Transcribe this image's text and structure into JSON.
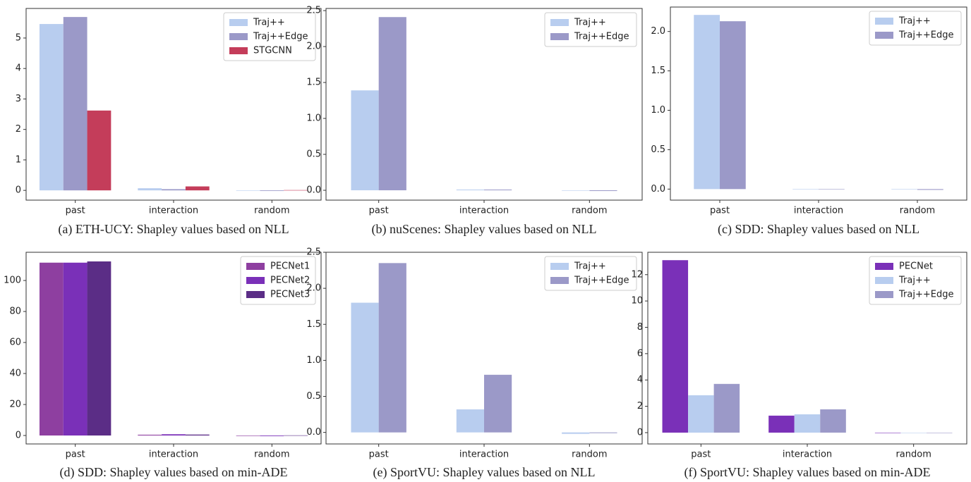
{
  "chart_data": [
    {
      "type": "bar",
      "caption": "(a) ETH-UCY: Shapley values based on NLL",
      "categories": [
        "past",
        "interaction",
        "random"
      ],
      "series": [
        {
          "name": "Traj++",
          "color": "#b8cdef",
          "values": [
            5.46,
            0.07,
            0.0
          ]
        },
        {
          "name": "Traj++Edge",
          "color": "#9b99c8",
          "values": [
            5.69,
            0.04,
            -0.02
          ]
        },
        {
          "name": "STGCNN",
          "color": "#c43d5a",
          "values": [
            2.62,
            0.13,
            0.01
          ]
        }
      ],
      "ylim": [
        -0.32,
        5.97
      ],
      "yticks": [
        0,
        1,
        2,
        3,
        4,
        5
      ],
      "legend": "upper right"
    },
    {
      "type": "bar",
      "caption": "(b) nuScenes: Shapley values based on NLL",
      "categories": [
        "past",
        "interaction",
        "random"
      ],
      "series": [
        {
          "name": "Traj++",
          "color": "#b8cdef",
          "values": [
            1.39,
            0.01,
            0.0
          ]
        },
        {
          "name": "Traj++Edge",
          "color": "#9b99c8",
          "values": [
            2.41,
            0.01,
            -0.01
          ]
        }
      ],
      "ylim": [
        -0.137,
        2.53
      ],
      "yticks": [
        {
          "value": 0,
          "label": "0.0"
        },
        0.5,
        {
          "value": 1,
          "label": "1.0"
        },
        1.5,
        {
          "value": 2,
          "label": "2.0"
        },
        2.5
      ],
      "legend": "upper right"
    },
    {
      "type": "bar",
      "caption": "(c) SDD: Shapley values based on NLL",
      "categories": [
        "past",
        "interaction",
        "random"
      ],
      "series": [
        {
          "name": "Traj++",
          "color": "#b8cdef",
          "values": [
            2.21,
            0.0,
            0.0
          ]
        },
        {
          "name": "Traj++Edge",
          "color": "#9b99c8",
          "values": [
            2.13,
            0.0,
            -0.01
          ]
        }
      ],
      "ylim": [
        -0.14,
        2.31
      ],
      "yticks": [
        {
          "value": 0,
          "label": "0.0"
        },
        0.5,
        {
          "value": 1,
          "label": "1.0"
        },
        1.5,
        {
          "value": 2,
          "label": "2.0"
        }
      ],
      "legend": "upper right"
    },
    {
      "type": "bar",
      "caption": "(d) SDD: Shapley values based on min-ADE",
      "categories": [
        "past",
        "interaction",
        "random"
      ],
      "series": [
        {
          "name": "PECNet1",
          "color": "#8e3fa0",
          "values": [
            111.5,
            0.5,
            -0.3
          ]
        },
        {
          "name": "PECNet2",
          "color": "#7a30b8",
          "values": [
            111.5,
            0.8,
            -0.4
          ]
        },
        {
          "name": "PECNet3",
          "color": "#5b2d86",
          "values": [
            112.3,
            0.6,
            0.1
          ]
        }
      ],
      "ylim": [
        -5.45,
        118.2
      ],
      "yticks": [
        0,
        20,
        40,
        60,
        80,
        100
      ],
      "legend": "upper right"
    },
    {
      "type": "bar",
      "caption": "(e) SportVU: Shapley values based on NLL",
      "categories": [
        "past",
        "interaction",
        "random"
      ],
      "series": [
        {
          "name": "Traj++",
          "color": "#b8cdef",
          "values": [
            1.8,
            0.32,
            -0.02
          ]
        },
        {
          "name": "Traj++Edge",
          "color": "#9b99c8",
          "values": [
            2.35,
            0.8,
            -0.01
          ]
        }
      ],
      "ylim": [
        -0.16,
        2.5
      ],
      "yticks": [
        {
          "value": 0,
          "label": "0.0"
        },
        0.5,
        {
          "value": 1,
          "label": "1.0"
        },
        1.5,
        {
          "value": 2,
          "label": "2.0"
        },
        2.5
      ],
      "legend": "upper right"
    },
    {
      "type": "bar",
      "caption": "(f) SportVU: Shapley values based on min-ADE",
      "categories": [
        "past",
        "interaction",
        "random"
      ],
      "series": [
        {
          "name": "PECNet",
          "color": "#7a30b8",
          "values": [
            13.1,
            1.29,
            0.0
          ]
        },
        {
          "name": "Traj++",
          "color": "#b8cdef",
          "values": [
            2.84,
            1.39,
            -0.03
          ]
        },
        {
          "name": "Traj++Edge",
          "color": "#9b99c8",
          "values": [
            3.7,
            1.77,
            0.0
          ]
        }
      ],
      "ylim": [
        -0.86,
        13.7
      ],
      "yticks": [
        0,
        2,
        4,
        6,
        8,
        10,
        12
      ],
      "legend": "upper right"
    }
  ]
}
